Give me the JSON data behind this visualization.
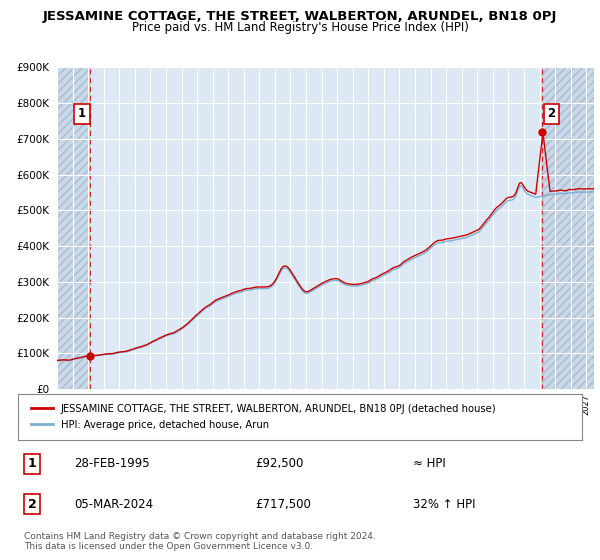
{
  "title": "JESSAMINE COTTAGE, THE STREET, WALBERTON, ARUNDEL, BN18 0PJ",
  "subtitle": "Price paid vs. HM Land Registry's House Price Index (HPI)",
  "hpi_line_color": "#7bafd4",
  "price_line_color": "#cc0000",
  "bg_color": "#dce9f5",
  "hatch_bg_color": "#c8d8e8",
  "grid_color": "#ffffff",
  "ylim": [
    0,
    900000
  ],
  "yticks": [
    0,
    100000,
    200000,
    300000,
    400000,
    500000,
    600000,
    700000,
    800000,
    900000
  ],
  "point1_year": 1995.15,
  "point1_value": 92500,
  "point1_label": "1",
  "point1_date": "28-FEB-1995",
  "point1_price": "£92,500",
  "point1_hpi": "≈ HPI",
  "point2_year": 2024.17,
  "point2_value": 717500,
  "point2_label": "2",
  "point2_date": "05-MAR-2024",
  "point2_price": "£717,500",
  "point2_hpi": "32% ↑ HPI",
  "legend_line1": "JESSAMINE COTTAGE, THE STREET, WALBERTON, ARUNDEL, BN18 0PJ (detached house)",
  "legend_line2": "HPI: Average price, detached house, Arun",
  "footer": "Contains HM Land Registry data © Crown copyright and database right 2024.\nThis data is licensed under the Open Government Licence v3.0.",
  "xmin": 1993.0,
  "xmax": 2027.5
}
